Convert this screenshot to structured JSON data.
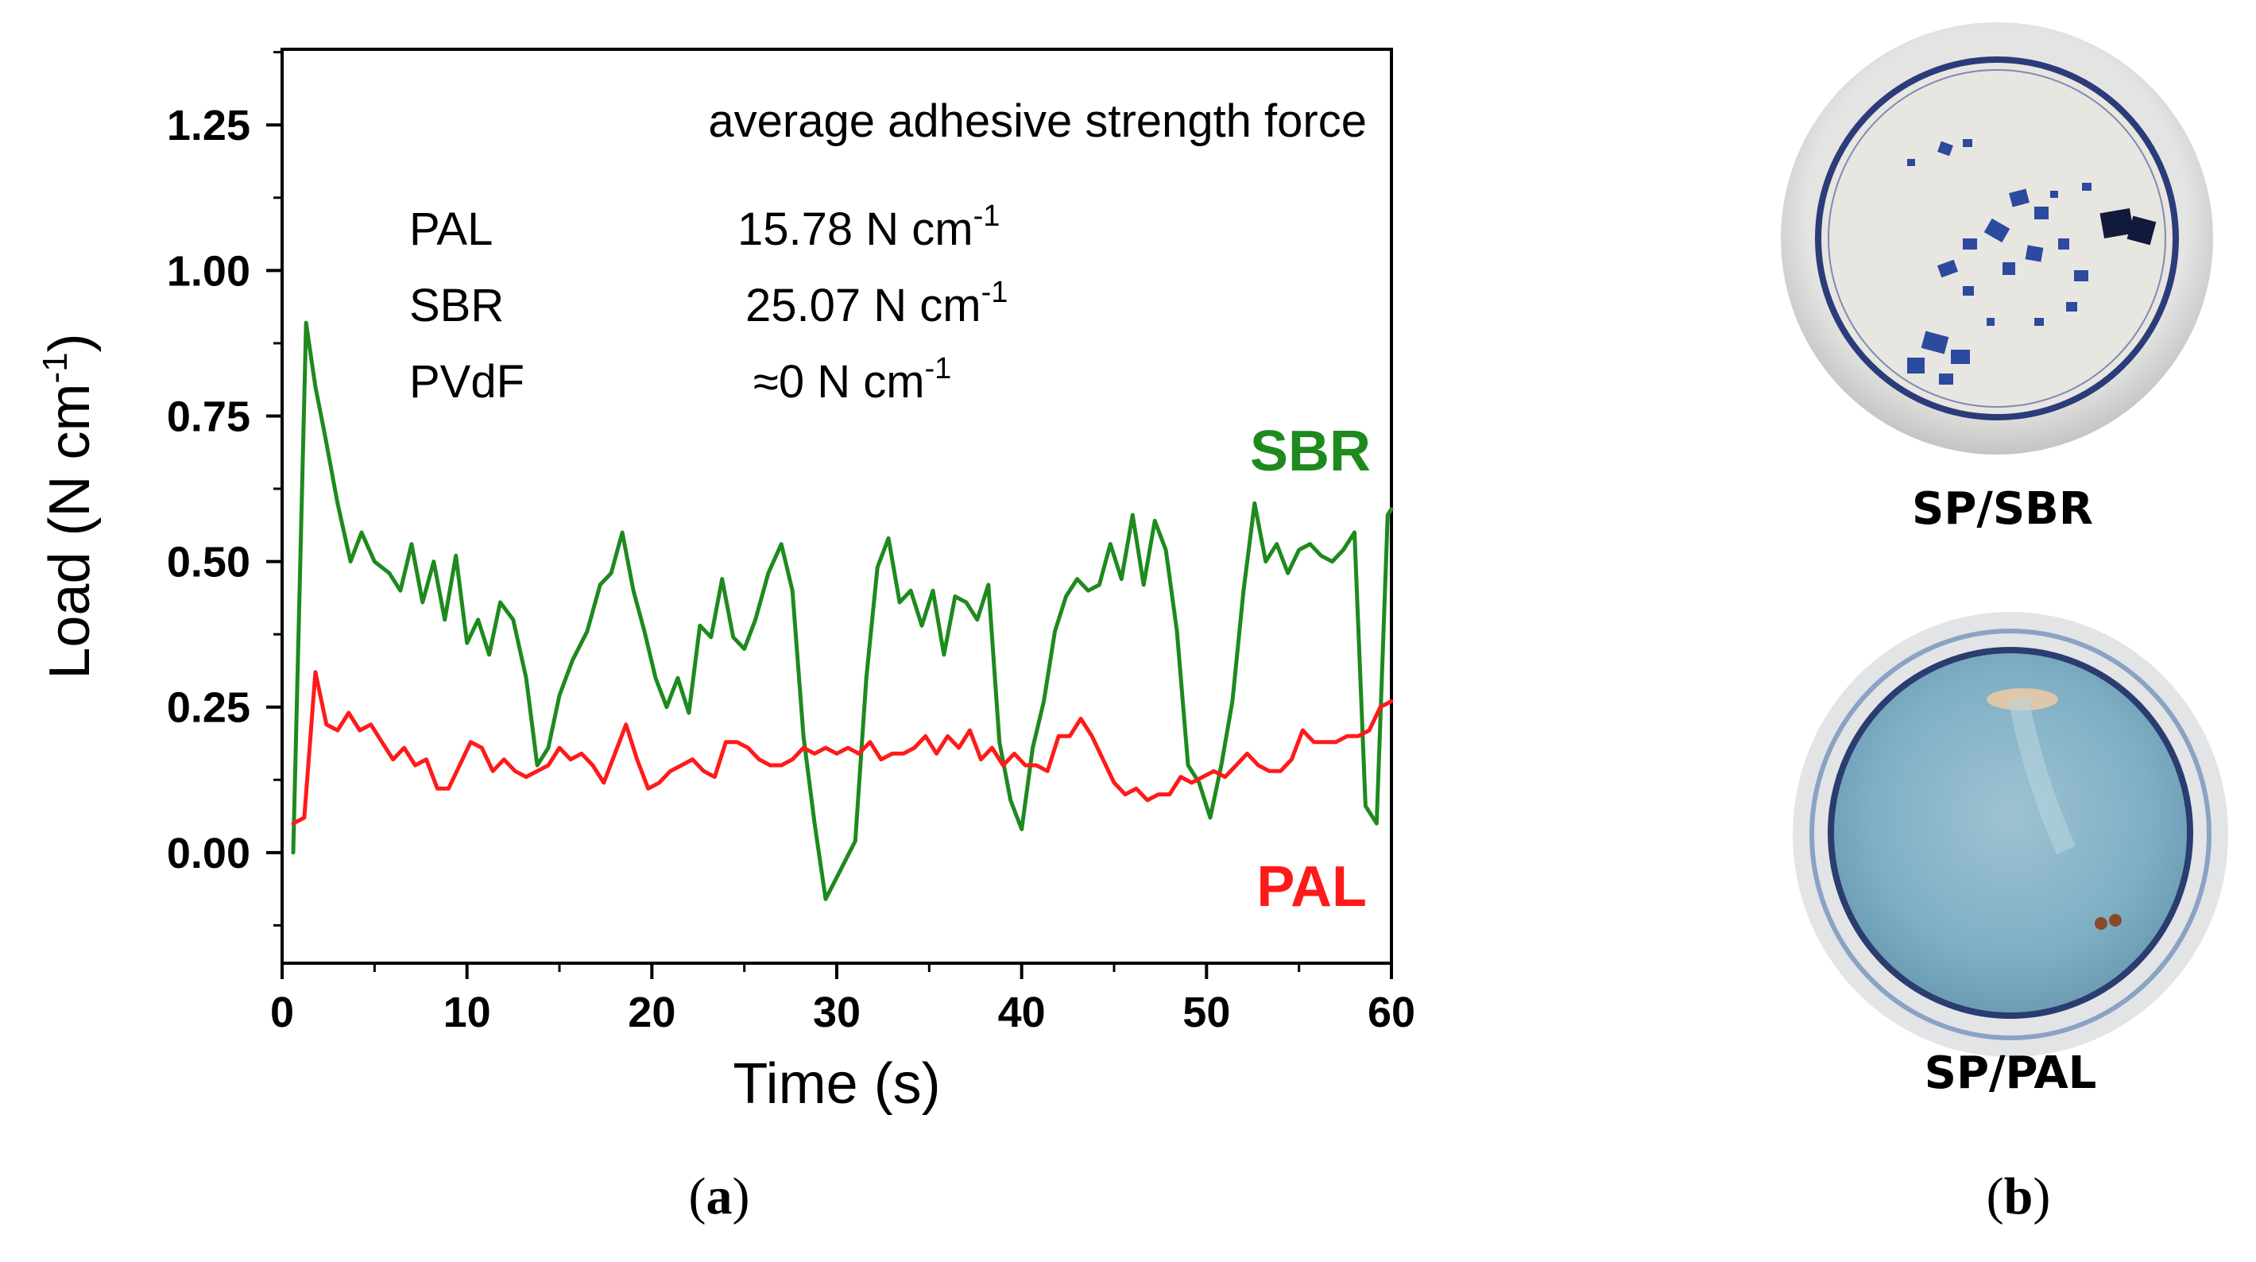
{
  "chart_data": {
    "type": "line",
    "title": "",
    "xlabel": "Time (s)",
    "ylabel": "Load (N cm",
    "ylabel_sup": "-1",
    "ylabel_close": ")",
    "xlim": [
      0,
      60
    ],
    "ylim": [
      -0.19,
      1.38
    ],
    "x_ticks": [
      0,
      10,
      20,
      30,
      40,
      50,
      60
    ],
    "x_tick_labels": [
      "0",
      "10",
      "20",
      "30",
      "40",
      "50",
      "60"
    ],
    "y_ticks": [
      0.0,
      0.25,
      0.5,
      0.75,
      1.0,
      1.25
    ],
    "y_tick_labels": [
      "0.00",
      "0.25",
      "0.50",
      "0.75",
      "1.00",
      "1.25"
    ],
    "grid": false,
    "annotation": {
      "heading": "average adhesive strength force",
      "rows": [
        {
          "name": "PAL",
          "value": "15.78  N cm",
          "sup": "-1"
        },
        {
          "name": "SBR",
          "value": "25.07 N cm",
          "sup": "-1"
        },
        {
          "name": "PVdF",
          "value": "≈0 N cm",
          "sup": "-1"
        }
      ]
    },
    "series": [
      {
        "name": "SBR",
        "color": "#1e8a1e",
        "x": [
          0.6,
          1.3,
          1.8,
          2.3,
          3.0,
          3.7,
          4.3,
          5.0,
          5.8,
          6.4,
          7.0,
          7.6,
          8.2,
          8.8,
          9.4,
          10.0,
          10.6,
          11.2,
          11.8,
          12.5,
          13.2,
          13.8,
          14.4,
          15.0,
          15.7,
          16.5,
          17.2,
          17.8,
          18.4,
          19.0,
          19.6,
          20.2,
          20.8,
          21.4,
          22.0,
          22.6,
          23.2,
          23.8,
          24.4,
          25.0,
          25.6,
          26.3,
          27.0,
          27.6,
          28.2,
          28.8,
          29.4,
          30.2,
          31.0,
          31.6,
          32.2,
          32.8,
          33.4,
          34.0,
          34.6,
          35.2,
          35.8,
          36.4,
          37.0,
          37.6,
          38.2,
          38.8,
          39.4,
          40.0,
          40.6,
          41.2,
          41.8,
          42.4,
          43.0,
          43.6,
          44.2,
          44.8,
          45.4,
          46.0,
          46.6,
          47.2,
          47.8,
          48.4,
          49.0,
          49.6,
          50.2,
          50.8,
          51.4,
          52.0,
          52.6,
          53.2,
          53.8,
          54.4,
          55.0,
          55.6,
          56.2,
          56.8,
          57.4,
          58.0,
          58.6,
          59.2,
          59.8,
          60.0
        ],
        "values": [
          0.0,
          0.91,
          0.8,
          0.72,
          0.6,
          0.5,
          0.55,
          0.5,
          0.48,
          0.45,
          0.53,
          0.43,
          0.5,
          0.4,
          0.51,
          0.36,
          0.4,
          0.34,
          0.43,
          0.4,
          0.3,
          0.15,
          0.18,
          0.27,
          0.33,
          0.38,
          0.46,
          0.48,
          0.55,
          0.45,
          0.38,
          0.3,
          0.25,
          0.3,
          0.24,
          0.39,
          0.37,
          0.47,
          0.37,
          0.35,
          0.4,
          0.48,
          0.53,
          0.45,
          0.2,
          0.05,
          -0.08,
          -0.03,
          0.02,
          0.3,
          0.49,
          0.54,
          0.43,
          0.45,
          0.39,
          0.45,
          0.34,
          0.44,
          0.43,
          0.4,
          0.46,
          0.19,
          0.09,
          0.04,
          0.18,
          0.26,
          0.38,
          0.44,
          0.47,
          0.45,
          0.46,
          0.53,
          0.47,
          0.58,
          0.46,
          0.57,
          0.52,
          0.38,
          0.15,
          0.12,
          0.06,
          0.15,
          0.26,
          0.45,
          0.6,
          0.5,
          0.53,
          0.48,
          0.52,
          0.53,
          0.51,
          0.5,
          0.52,
          0.55,
          0.08,
          0.05,
          0.58,
          0.59
        ]
      },
      {
        "name": "PAL",
        "color": "#ff1a1a",
        "x": [
          0.6,
          1.2,
          1.8,
          2.4,
          3.0,
          3.6,
          4.2,
          4.8,
          5.4,
          6.0,
          6.6,
          7.2,
          7.8,
          8.4,
          9.0,
          9.6,
          10.2,
          10.8,
          11.4,
          12.0,
          12.6,
          13.2,
          13.8,
          14.4,
          15.0,
          15.6,
          16.2,
          16.8,
          17.4,
          18.0,
          18.6,
          19.2,
          19.8,
          20.4,
          21.0,
          21.6,
          22.2,
          22.8,
          23.4,
          24.0,
          24.6,
          25.2,
          25.8,
          26.4,
          27.0,
          27.6,
          28.2,
          28.8,
          29.4,
          30.0,
          30.6,
          31.2,
          31.8,
          32.4,
          33.0,
          33.6,
          34.2,
          34.8,
          35.4,
          36.0,
          36.6,
          37.2,
          37.8,
          38.4,
          39.0,
          39.6,
          40.2,
          40.8,
          41.4,
          42.0,
          42.6,
          43.2,
          43.8,
          44.4,
          45.0,
          45.6,
          46.2,
          46.8,
          47.4,
          48.0,
          48.6,
          49.2,
          49.8,
          50.4,
          51.0,
          51.6,
          52.2,
          52.8,
          53.4,
          54.0,
          54.6,
          55.2,
          55.8,
          56.4,
          57.0,
          57.6,
          58.2,
          58.8,
          59.4,
          60.0
        ],
        "values": [
          0.05,
          0.06,
          0.31,
          0.22,
          0.21,
          0.24,
          0.21,
          0.22,
          0.19,
          0.16,
          0.18,
          0.15,
          0.16,
          0.11,
          0.11,
          0.15,
          0.19,
          0.18,
          0.14,
          0.16,
          0.14,
          0.13,
          0.14,
          0.15,
          0.18,
          0.16,
          0.17,
          0.15,
          0.12,
          0.17,
          0.22,
          0.16,
          0.11,
          0.12,
          0.14,
          0.15,
          0.16,
          0.14,
          0.13,
          0.19,
          0.19,
          0.18,
          0.16,
          0.15,
          0.15,
          0.16,
          0.18,
          0.17,
          0.18,
          0.17,
          0.18,
          0.17,
          0.19,
          0.16,
          0.17,
          0.17,
          0.18,
          0.2,
          0.17,
          0.2,
          0.18,
          0.21,
          0.16,
          0.18,
          0.15,
          0.17,
          0.15,
          0.15,
          0.14,
          0.2,
          0.2,
          0.23,
          0.2,
          0.16,
          0.12,
          0.1,
          0.11,
          0.09,
          0.1,
          0.1,
          0.13,
          0.12,
          0.13,
          0.14,
          0.13,
          0.15,
          0.17,
          0.15,
          0.14,
          0.14,
          0.16,
          0.21,
          0.19,
          0.19,
          0.19,
          0.2,
          0.2,
          0.21,
          0.25,
          0.26
        ]
      }
    ],
    "series_labels": {
      "sbr": "SBR",
      "pal": "PAL"
    }
  },
  "photos": {
    "top_caption": "SP/SBR",
    "bottom_caption": "SP/PAL"
  },
  "panel_labels": {
    "a": "a",
    "b": "b",
    "open": "(",
    "close": ")"
  }
}
